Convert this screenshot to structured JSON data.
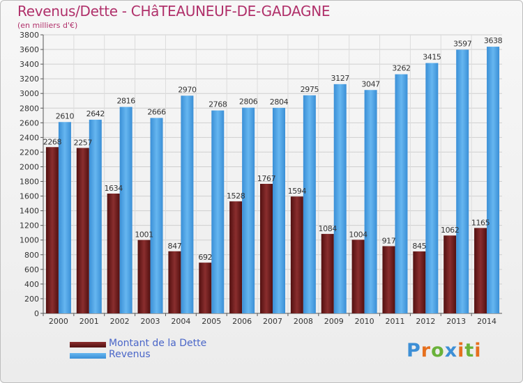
{
  "header": {
    "title": "Revenus/Dette - CHâTEAUNEUF-DE-GADAGNE",
    "subtitle": "(en milliers d'€)"
  },
  "chart_data": {
    "type": "bar",
    "categories": [
      "2000",
      "2001",
      "2002",
      "2003",
      "2004",
      "2005",
      "2006",
      "2007",
      "2008",
      "2009",
      "2010",
      "2011",
      "2012",
      "2013",
      "2014"
    ],
    "series": [
      {
        "name": "Montant de la Dette",
        "color": "#6e1a1a",
        "values": [
          2268,
          2257,
          1634,
          1001,
          847,
          692,
          1528,
          1767,
          1594,
          1084,
          1004,
          917,
          845,
          1062,
          1165
        ],
        "labels": [
          "2268",
          "2257",
          "1634",
          "1001",
          "847",
          "692",
          "1528",
          "1767",
          "1594",
          "1084",
          "1004",
          "917",
          "845",
          "1062",
          "1165"
        ]
      },
      {
        "name": "Revenus",
        "color": "#4da3e6",
        "values": [
          2610,
          2642,
          2816,
          2666,
          2970,
          2768,
          2806,
          2804,
          2975,
          3127,
          3047,
          3262,
          3415,
          3597,
          3638
        ],
        "labels": [
          "2610",
          "2642",
          "2816",
          "2666",
          "2970",
          "2768",
          "2806",
          "2804",
          "2975",
          "3127",
          "3047",
          "3262",
          "3415",
          "3597",
          "3638"
        ]
      }
    ],
    "ylim": [
      0,
      3800
    ],
    "yticks": [
      "0",
      "200",
      "400",
      "600",
      "800",
      "1000",
      "1200",
      "1400",
      "1600",
      "1800",
      "2000",
      "2200",
      "2400",
      "2600",
      "2800",
      "3000",
      "3200",
      "3400",
      "3600",
      "3800"
    ],
    "grid": true,
    "legend_position": "bottom-left"
  },
  "logo": {
    "letters": [
      "P",
      "r",
      "o",
      "x",
      "i",
      "t",
      "i"
    ],
    "colors": [
      "#3d8fd6",
      "#e6701e",
      "#6ab23a",
      "#3d8fd6",
      "#e6701e",
      "#6ab23a",
      "#e6701e"
    ]
  }
}
